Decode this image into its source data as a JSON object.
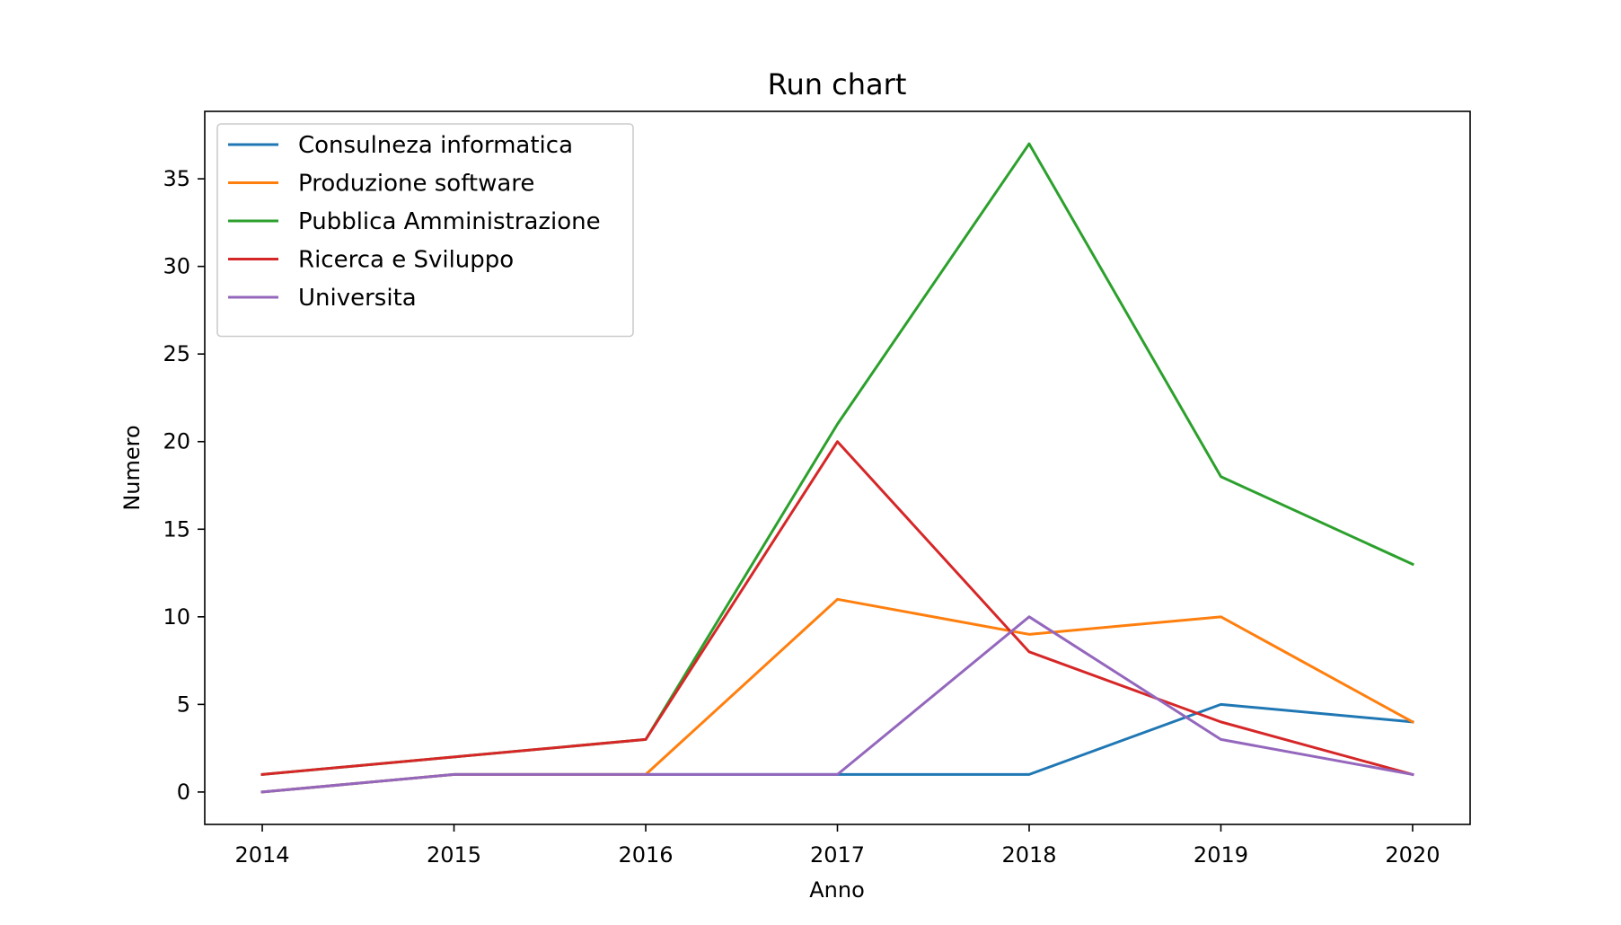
{
  "chart_data": {
    "type": "line",
    "title": "Run chart",
    "xlabel": "Anno",
    "ylabel": "Numero",
    "x": [
      2014,
      2015,
      2016,
      2017,
      2018,
      2019,
      2020
    ],
    "x_tick_labels": [
      "2014",
      "2015",
      "2016",
      "2017",
      "2018",
      "2019",
      "2020"
    ],
    "y_ticks": [
      0,
      5,
      10,
      15,
      20,
      25,
      30,
      35
    ],
    "y_tick_labels": [
      "0",
      "5",
      "10",
      "15",
      "20",
      "25",
      "30",
      "35"
    ],
    "xlim": [
      2013.7,
      2020.3
    ],
    "ylim": [
      -1.85,
      38.85
    ],
    "grid": false,
    "legend_position": "top-left",
    "series": [
      {
        "name": "Consulneza informatica",
        "color": "#1f77b4",
        "values": [
          0,
          1,
          1,
          1,
          1,
          5,
          4
        ]
      },
      {
        "name": "Produzione software",
        "color": "#ff7f0e",
        "values": [
          0,
          1,
          1,
          11,
          9,
          10,
          4
        ]
      },
      {
        "name": "Pubblica Amministrazione",
        "color": "#2ca02c",
        "values": [
          1,
          2,
          3,
          21,
          37,
          18,
          13
        ]
      },
      {
        "name": "Ricerca e Sviluppo",
        "color": "#d62728",
        "values": [
          1,
          2,
          3,
          20,
          8,
          4,
          1
        ]
      },
      {
        "name": "Universita",
        "color": "#9467bd",
        "values": [
          0,
          1,
          1,
          1,
          10,
          3,
          1
        ]
      }
    ]
  }
}
